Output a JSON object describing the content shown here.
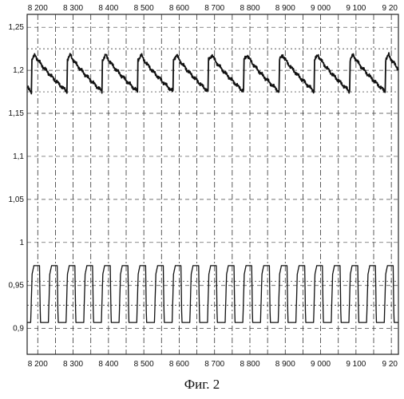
{
  "caption": "Фиг. 2",
  "chart_data": {
    "type": "line",
    "title": "",
    "xlabel": "",
    "ylabel": "",
    "x_ticks_top": [
      "8 200",
      "8 300",
      "8 400",
      "8 500",
      "8 600",
      "8 700",
      "8 800",
      "8 900",
      "9 000",
      "9 100",
      "9 20"
    ],
    "x_ticks_bottom": [
      "8 200",
      "8 300",
      "8 400",
      "8 500",
      "8 600",
      "8 700",
      "8 800",
      "8 900",
      "9 000",
      "9 100",
      "9 20"
    ],
    "y_ticks": [
      "1,25",
      "1,2",
      "1,15",
      "1,1",
      "1,05",
      "1",
      "0,95",
      "0,9"
    ],
    "xlim": [
      8170,
      9220
    ],
    "ylim": [
      0.87,
      1.265
    ],
    "grid": true,
    "series": [
      {
        "color": "#111111",
        "style": "sawtooth",
        "period": 100,
        "phase": 8183,
        "x_start": 8170,
        "x_end": 9220,
        "base": 1.175,
        "peak": 1.218,
        "pre": 1.212
      },
      {
        "color": "#111111",
        "style": "pulse",
        "period": 50,
        "phase": 8180,
        "x_start": 8170,
        "x_end": 9220,
        "low": 0.907,
        "high": 0.973
      }
    ],
    "reference_lines": [
      1.175,
      1.225,
      0.927,
      0.955
    ]
  }
}
